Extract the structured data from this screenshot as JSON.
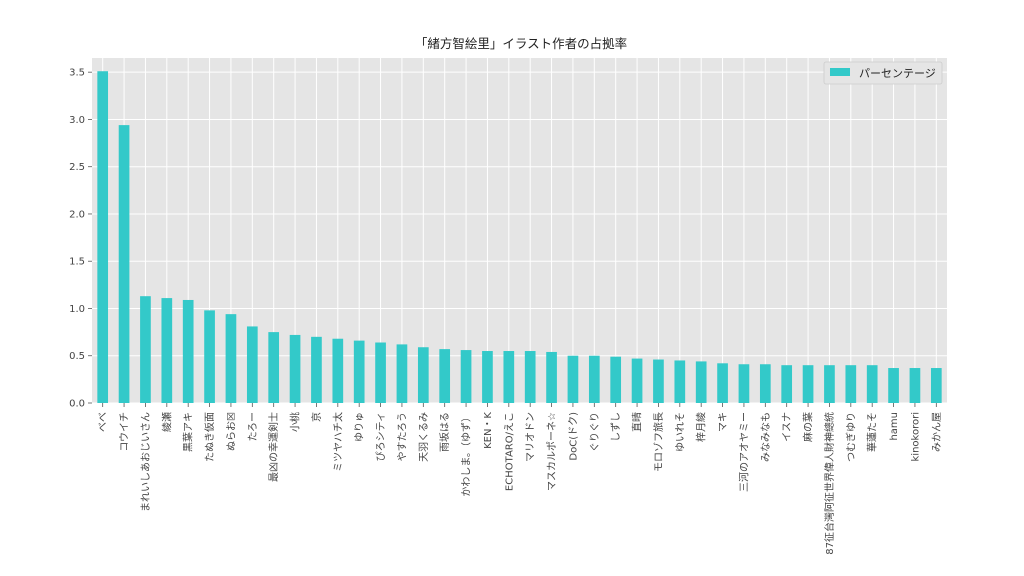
{
  "chart_data": {
    "type": "bar",
    "title": "「緒方智絵里」イラスト作者の占拠率",
    "xlabel": "",
    "ylabel": "",
    "ylim": [
      0,
      3.65
    ],
    "yticks": [
      "0.0",
      "0.5",
      "1.0",
      "1.5",
      "2.0",
      "2.5",
      "3.0",
      "3.5"
    ],
    "grid": true,
    "legend_position": "top-right",
    "bar_color": "#33c9c9",
    "background_color": "#e5e5e5",
    "categories": [
      "べべ",
      "コウイチ",
      "まれいしあおじいさん",
      "綾瀬",
      "黒葉アキ",
      "たぬき仮面",
      "ぬらお☒",
      "たろー",
      "最凶の幸運剣士",
      "小桃",
      "京",
      "ミツヤハチ太",
      "ゆりゅ",
      "ぴろシティ",
      "やすたろう",
      "天羽くるみ",
      "雨坂はる",
      "かわしま。（ゆず）",
      "KEN・K",
      "ECHOTARO/えこ",
      "マリオドン",
      "マスカルポーネ☆",
      "DoC(ドク)",
      "ぐりぐり",
      "しずし",
      "直晴",
      "モロゾフ旅長",
      "ゆいれそ",
      "梓月綾",
      "マキ",
      "三河のアオヤミー",
      "みなみなも",
      "イスナ",
      "麻の葉",
      "87征台灣阿征世界偉人財神總統",
      "つむぎゆり",
      "華蓮たそ",
      "hamu",
      "kinokorori",
      "みかん屋"
    ],
    "series": [
      {
        "name": "パーセンテージ",
        "values": [
          3.51,
          2.94,
          1.13,
          1.11,
          1.09,
          0.98,
          0.94,
          0.81,
          0.75,
          0.72,
          0.7,
          0.68,
          0.66,
          0.64,
          0.62,
          0.59,
          0.57,
          0.56,
          0.55,
          0.55,
          0.55,
          0.54,
          0.5,
          0.5,
          0.49,
          0.47,
          0.46,
          0.45,
          0.44,
          0.42,
          0.41,
          0.41,
          0.4,
          0.4,
          0.4,
          0.4,
          0.4,
          0.37,
          0.37,
          0.37
        ]
      }
    ]
  }
}
